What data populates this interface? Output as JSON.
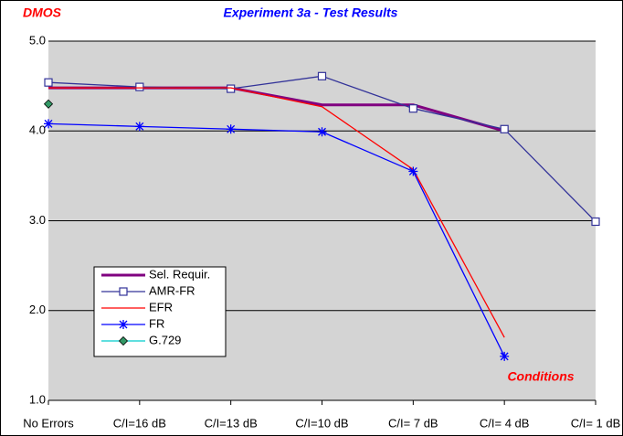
{
  "chart_data": {
    "type": "line",
    "title": "Experiment 3a - Test Results",
    "y_label": "DMOS",
    "x_label": "Conditions",
    "categories": [
      "No Errors",
      "C/I=16 dB",
      "C/I=13 dB",
      "C/I=10 dB",
      "C/I= 7 dB",
      "C/I= 4 dB",
      "C/I= 1 dB"
    ],
    "ylim": [
      1,
      5
    ],
    "yticks": [
      {
        "value": 1,
        "label": "1.0"
      },
      {
        "value": 2,
        "label": "2.0"
      },
      {
        "value": 3,
        "label": "3.0"
      },
      {
        "value": 4,
        "label": "4.0"
      },
      {
        "value": 5,
        "label": "5.0"
      }
    ],
    "grid": true,
    "legend": "lower left",
    "series": [
      {
        "name": "Sel. Requir.",
        "color": "#800080",
        "marker": "none",
        "values": [
          4.48,
          4.48,
          4.48,
          4.29,
          4.29,
          4.0,
          null
        ]
      },
      {
        "name": "AMR-FR",
        "color": "#333399",
        "marker": "square",
        "values": [
          4.54,
          4.49,
          4.47,
          4.61,
          4.25,
          4.02,
          2.99
        ]
      },
      {
        "name": "EFR",
        "color": "#ff0000",
        "marker": "none",
        "values": [
          4.48,
          4.48,
          4.48,
          4.27,
          3.57,
          1.7,
          null
        ]
      },
      {
        "name": "FR",
        "color": "#0000ff",
        "marker": "star",
        "values": [
          4.08,
          4.05,
          4.02,
          3.99,
          3.55,
          1.49,
          null
        ]
      },
      {
        "name": "G.729",
        "color": "#00cccc",
        "marker": "diamond",
        "marker_color": "#339966",
        "values": [
          4.3,
          null,
          null,
          null,
          null,
          null,
          null
        ]
      }
    ]
  }
}
